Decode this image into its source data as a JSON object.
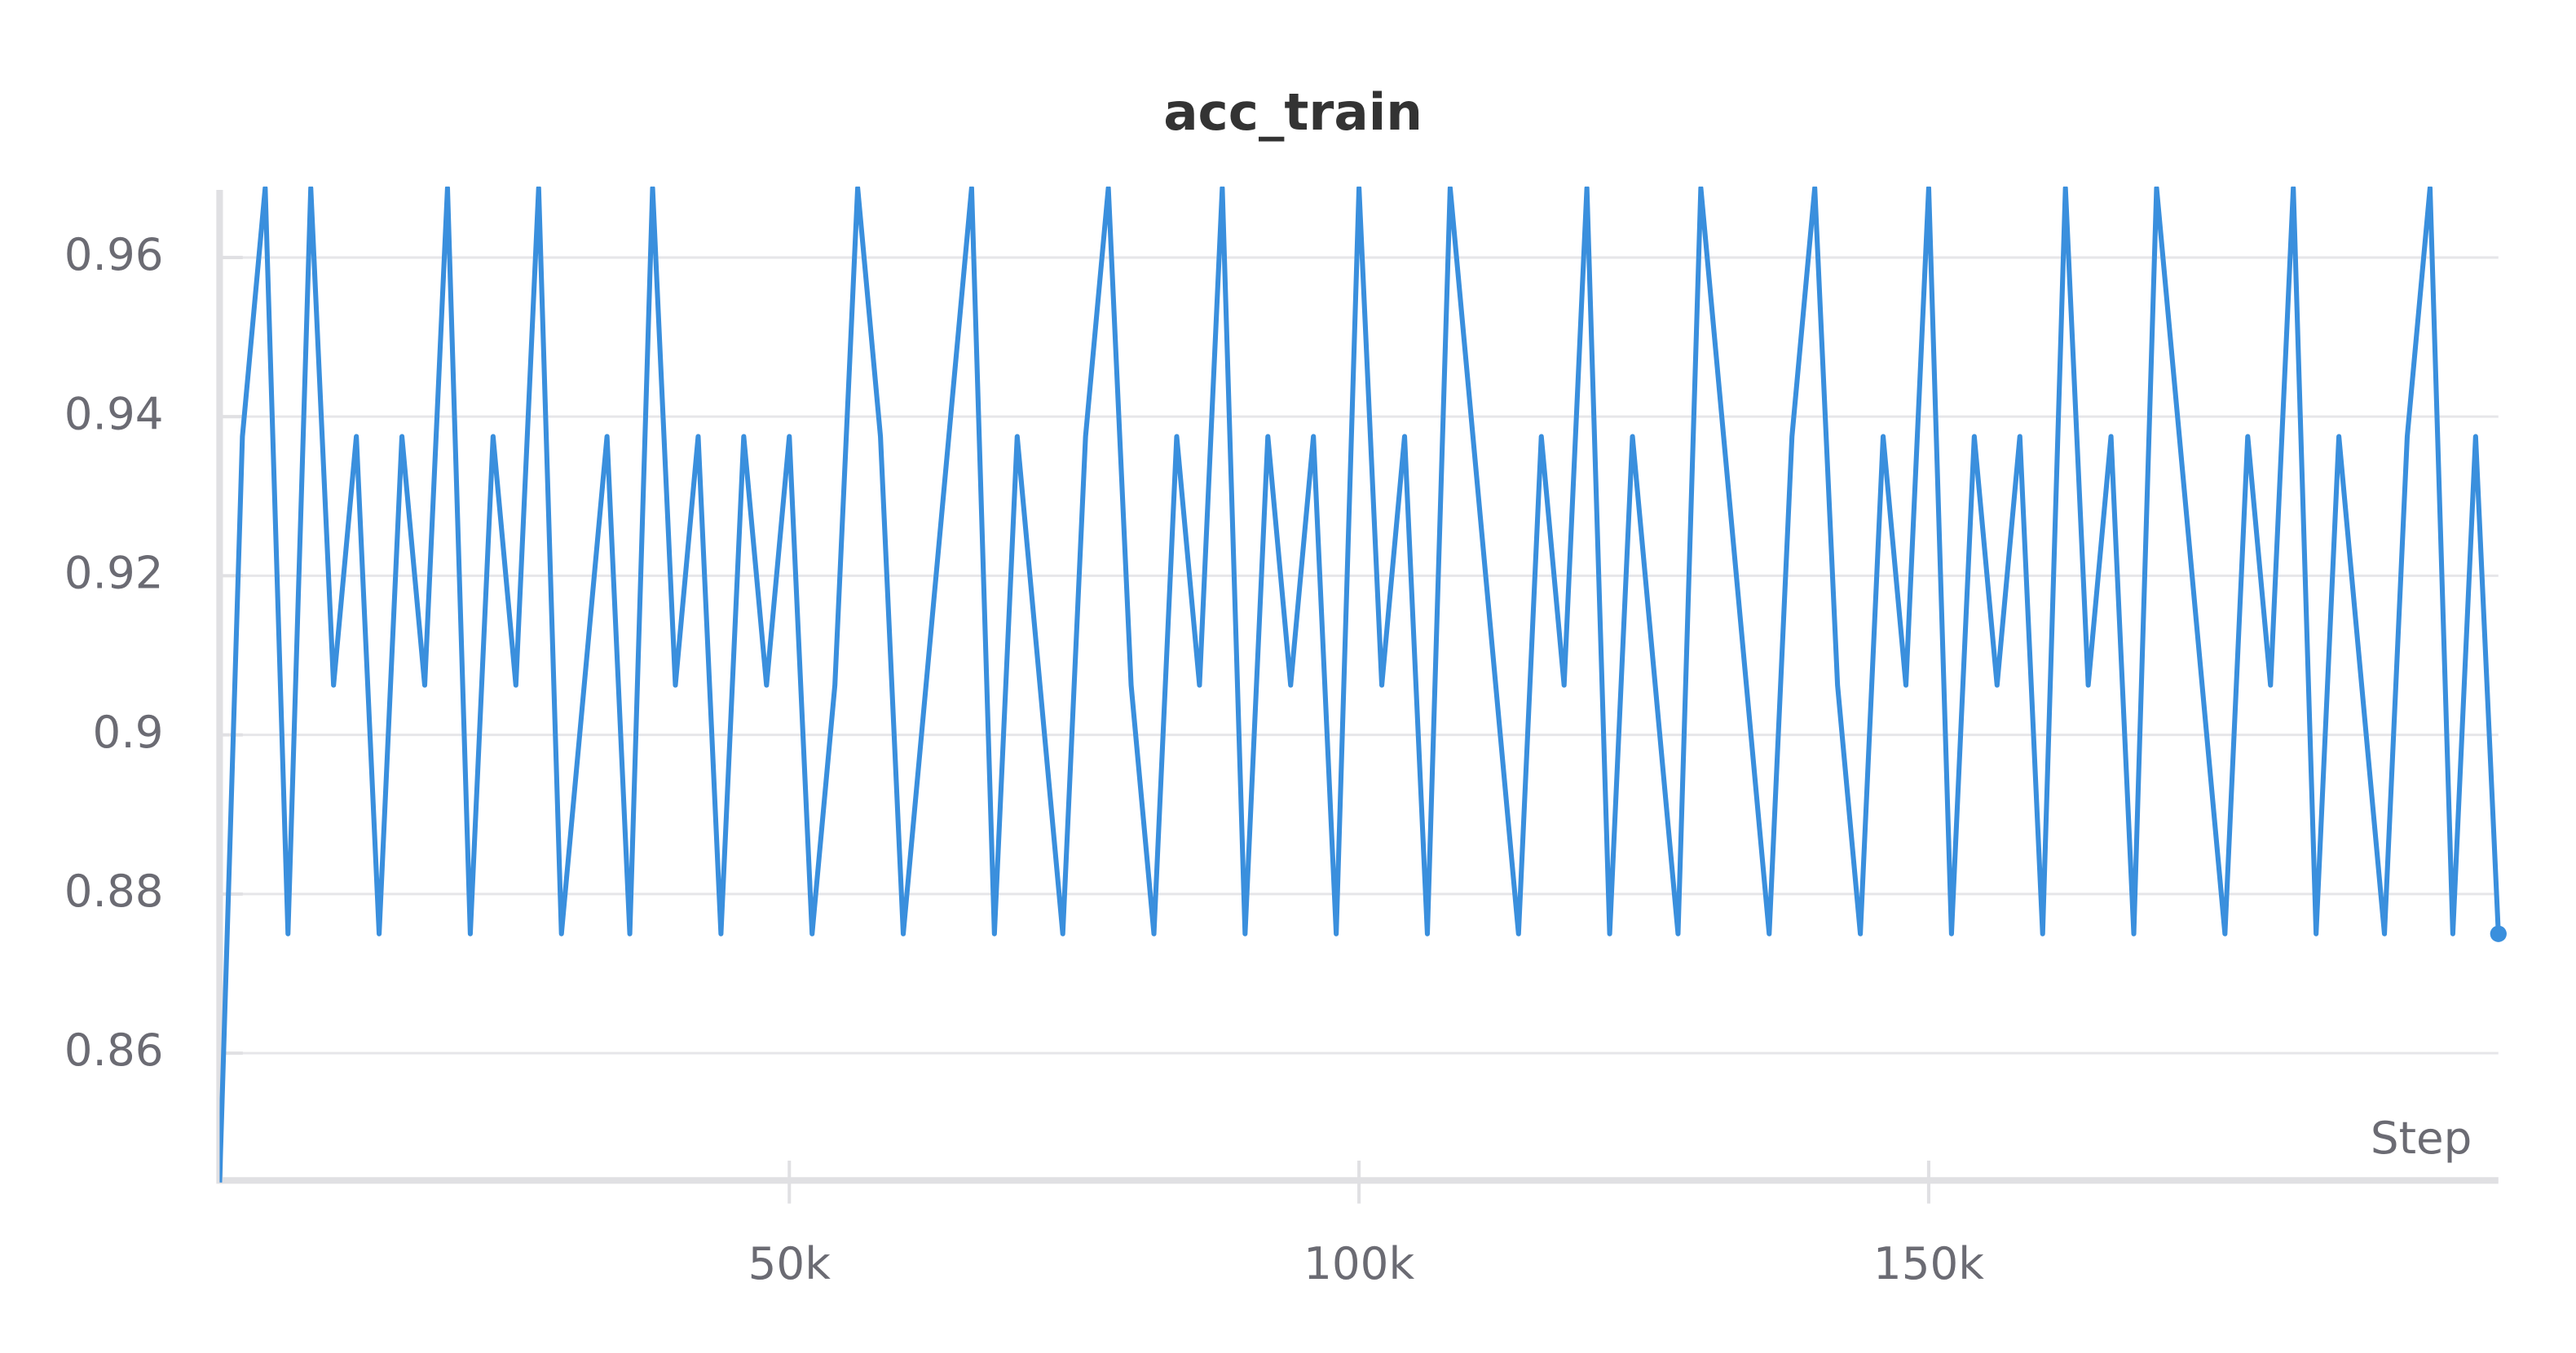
{
  "chart_data": {
    "type": "line",
    "title": "acc_train",
    "x_label": "Step",
    "x": [
      0,
      2000,
      4000,
      6000,
      8000,
      10000,
      12000,
      14000,
      16000,
      18000,
      20000,
      22000,
      24000,
      26000,
      28000,
      30000,
      32000,
      34000,
      36000,
      38000,
      40000,
      42000,
      44000,
      46000,
      48000,
      50000,
      52000,
      54000,
      56000,
      58000,
      60000,
      62000,
      64000,
      66000,
      68000,
      70000,
      72000,
      74000,
      76000,
      78000,
      80000,
      82000,
      84000,
      86000,
      88000,
      90000,
      92000,
      94000,
      96000,
      98000,
      100000,
      102000,
      104000,
      106000,
      108000,
      110000,
      112000,
      114000,
      116000,
      118000,
      120000,
      122000,
      124000,
      126000,
      128000,
      130000,
      132000,
      134000,
      136000,
      138000,
      140000,
      142000,
      144000,
      146000,
      148000,
      150000,
      152000,
      154000,
      156000,
      158000,
      160000,
      162000,
      164000,
      166000,
      168000,
      170000,
      172000,
      174000,
      176000,
      178000,
      180000,
      182000,
      184000,
      186000,
      188000,
      190000,
      192000,
      194000,
      196000,
      198000,
      200000
    ],
    "series": [
      {
        "color": "#3a8fdd",
        "values": [
          0.84375,
          0.9375,
          0.96875,
          0.875,
          0.96875,
          0.90625,
          0.9375,
          0.875,
          0.9375,
          0.90625,
          0.96875,
          0.875,
          0.9375,
          0.90625,
          0.96875,
          0.875,
          0.90625,
          0.9375,
          0.875,
          0.96875,
          0.90625,
          0.9375,
          0.875,
          0.9375,
          0.90625,
          0.9375,
          0.875,
          0.90625,
          0.96875,
          0.9375,
          0.875,
          0.90625,
          0.9375,
          0.96875,
          0.875,
          0.9375,
          0.90625,
          0.875,
          0.9375,
          0.96875,
          0.90625,
          0.875,
          0.9375,
          0.90625,
          0.96875,
          0.875,
          0.9375,
          0.90625,
          0.9375,
          0.875,
          0.96875,
          0.90625,
          0.9375,
          0.875,
          0.96875,
          0.9375,
          0.90625,
          0.875,
          0.9375,
          0.90625,
          0.96875,
          0.875,
          0.9375,
          0.90625,
          0.875,
          0.96875,
          0.9375,
          0.90625,
          0.875,
          0.9375,
          0.96875,
          0.90625,
          0.875,
          0.9375,
          0.90625,
          0.96875,
          0.875,
          0.9375,
          0.90625,
          0.9375,
          0.875,
          0.96875,
          0.90625,
          0.9375,
          0.875,
          0.96875,
          0.9375,
          0.90625,
          0.875,
          0.9375,
          0.90625,
          0.96875,
          0.875,
          0.9375,
          0.90625,
          0.875,
          0.9375,
          0.96875,
          0.875,
          0.9375,
          0.875
        ]
      }
    ],
    "xlim": [
      0,
      200000
    ],
    "ylim": [
      0.844,
      0.9685
    ],
    "xticks": [
      {
        "value": 50000,
        "label": "50k"
      },
      {
        "value": 100000,
        "label": "100k"
      },
      {
        "value": 150000,
        "label": "150k"
      }
    ],
    "yticks": [
      0.86,
      0.88,
      0.9,
      0.92,
      0.94,
      0.96
    ],
    "grid": true
  }
}
